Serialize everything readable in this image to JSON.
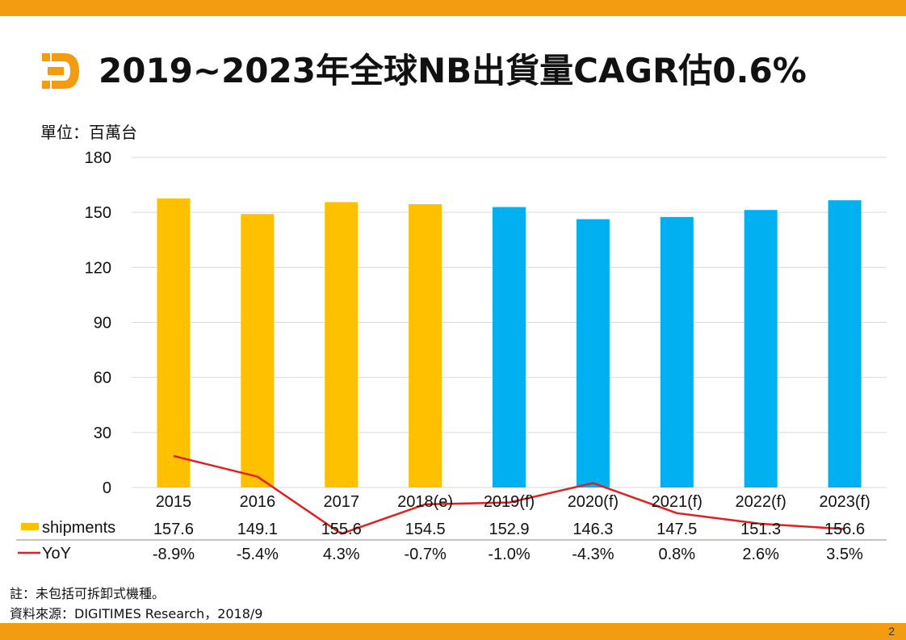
{
  "header": {
    "title": "2019~2023年全球NB出貨量CAGR估0.6%",
    "unit_label": "單位：百萬台"
  },
  "colors": {
    "accent_bar": "#f39c12",
    "actual": "#ffc000",
    "forecast": "#00b0f0",
    "yoy_line": "#e02020"
  },
  "chart_data": {
    "type": "bar",
    "categories": [
      "2015",
      "2016",
      "2017",
      "2018(e)",
      "2019(f)",
      "2020(f)",
      "2021(f)",
      "2022(f)",
      "2023(f)"
    ],
    "series": [
      {
        "name": "shipments",
        "values": [
          157.6,
          149.1,
          155.6,
          154.5,
          152.9,
          146.3,
          147.5,
          151.3,
          156.6
        ],
        "labels": [
          "157.6",
          "149.1",
          "155.6",
          "154.5",
          "152.9",
          "146.3",
          "147.5",
          "151.3",
          "156.6"
        ],
        "forecast_from_index": 4
      },
      {
        "name": "YoY",
        "type": "line",
        "values": [
          -8.9,
          -5.4,
          4.3,
          -0.7,
          -1.0,
          -4.3,
          0.8,
          2.6,
          3.5
        ],
        "labels": [
          "-8.9%",
          "-5.4%",
          "4.3%",
          "-0.7%",
          "-1.0%",
          "-4.3%",
          "0.8%",
          "2.6%",
          "3.5%"
        ]
      }
    ],
    "y_ticks": [
      "0",
      "30",
      "60",
      "90",
      "120",
      "150",
      "180"
    ],
    "ylim": [
      0,
      180
    ],
    "grid": true,
    "legend": "data-table-bottom"
  },
  "footer": {
    "note": "註：未包括可拆卸式機種。",
    "source": "資料來源：DIGITIMES Research，2018/9",
    "page_number": "2"
  }
}
